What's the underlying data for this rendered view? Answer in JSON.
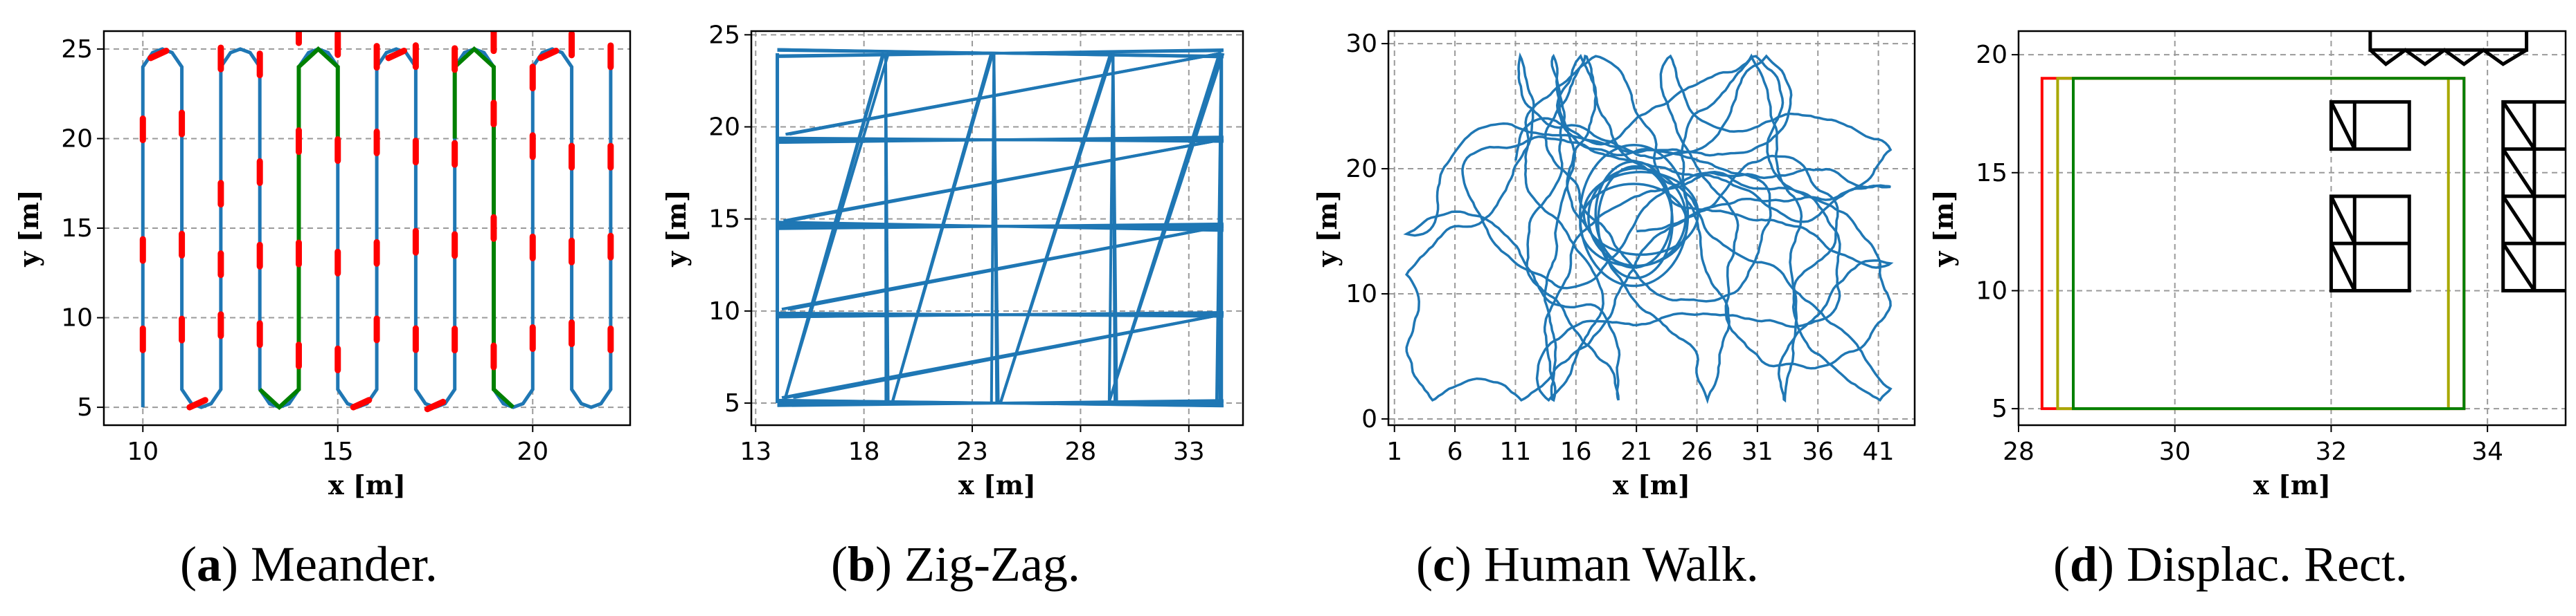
{
  "captions": [
    {
      "letter": "a",
      "open": "(",
      "close": ")",
      "text": " Meander."
    },
    {
      "letter": "b",
      "open": "(",
      "close": ")",
      "text": " Zig-Zag."
    },
    {
      "letter": "c",
      "open": "(",
      "close": ")",
      "text": " Human Walk."
    },
    {
      "letter": "d",
      "open": "(",
      "close": ")",
      "text": " Displac. Rect."
    }
  ],
  "colors": {
    "path": "#1f77b4",
    "red": "#ff0000",
    "green": "#008000",
    "olive": "#a8a800",
    "black": "#000000",
    "grid": "#9a9a9a"
  },
  "chart_data": [
    {
      "type": "line",
      "xlabel": "x [m]",
      "ylabel": "y [m]",
      "xlim": [
        9,
        22.5
      ],
      "ylim": [
        4,
        26
      ],
      "xticks": [
        10,
        15,
        20
      ],
      "yticks": [
        5,
        10,
        15,
        20,
        25
      ],
      "grid": true,
      "series": [
        {
          "color": "blue",
          "columns_x": [
            10,
            12,
            14,
            16,
            18,
            20,
            22
          ],
          "y_range": [
            5,
            25
          ],
          "pattern": "meander"
        },
        {
          "color": "green",
          "segments": [
            [
              [
                13.3,
                6
              ],
              [
                14,
                5
              ],
              [
                14.7,
                6
              ],
              [
                14.7,
                24
              ]
            ],
            [
              [
                14.7,
                24
              ],
              [
                15.3,
                25
              ],
              [
                16,
                24
              ]
            ],
            [
              [
                18.1,
                24
              ],
              [
                18.8,
                25
              ],
              [
                19.5,
                24
              ],
              [
                19.5,
                6
              ],
              [
                20,
                5
              ]
            ]
          ]
        }
      ]
    },
    {
      "type": "line",
      "xlabel": "x [m]",
      "ylabel": "y [m]",
      "xlim": [
        12.8,
        35.5
      ],
      "ylim": [
        3.8,
        25.2
      ],
      "xticks": [
        13,
        18,
        23,
        28,
        33
      ],
      "yticks": [
        5,
        10,
        15,
        20,
        25
      ],
      "grid": true,
      "series": [
        {
          "color": "blue",
          "pattern": "zigzag",
          "x_range": [
            14,
            34.5
          ],
          "y_range": [
            5,
            24
          ]
        }
      ]
    },
    {
      "type": "line",
      "xlabel": "x [m]",
      "ylabel": "y [m]",
      "xlim": [
        0.5,
        44
      ],
      "ylim": [
        -0.5,
        31
      ],
      "xticks": [
        1,
        6,
        11,
        16,
        21,
        26,
        31,
        36,
        41
      ],
      "yticks": [
        0,
        10,
        20,
        30
      ],
      "grid": true,
      "series": [
        {
          "color": "blue",
          "pattern": "random-walk",
          "x_range": [
            1,
            42
          ],
          "y_range": [
            1,
            29
          ]
        }
      ]
    },
    {
      "type": "line",
      "xlabel": "x [m]",
      "ylabel": "y [m]",
      "xlim": [
        28,
        35
      ],
      "ylim": [
        4.3,
        21
      ],
      "xticks": [
        28,
        30,
        32,
        34
      ],
      "yticks": [
        5,
        10,
        15,
        20
      ],
      "grid": true,
      "rectangles": [
        {
          "color": "red",
          "x": [
            28.3,
            33.7
          ],
          "y": [
            5,
            19
          ]
        },
        {
          "color": "olive",
          "x": [
            28.5,
            33.5
          ],
          "y": [
            5,
            19
          ]
        },
        {
          "color": "green",
          "x": [
            28.7,
            33.7
          ],
          "y": [
            5,
            19
          ]
        }
      ],
      "obstacles": [
        {
          "x": [
            32,
            33
          ],
          "y": [
            16,
            18
          ]
        },
        {
          "x": [
            32,
            33
          ],
          "y": [
            10,
            14
          ]
        },
        {
          "x": [
            34.2,
            35.2
          ],
          "y": [
            10,
            18
          ]
        },
        {
          "x": [
            32.5,
            34.5
          ],
          "y": [
            19.5,
            21
          ]
        }
      ]
    }
  ]
}
